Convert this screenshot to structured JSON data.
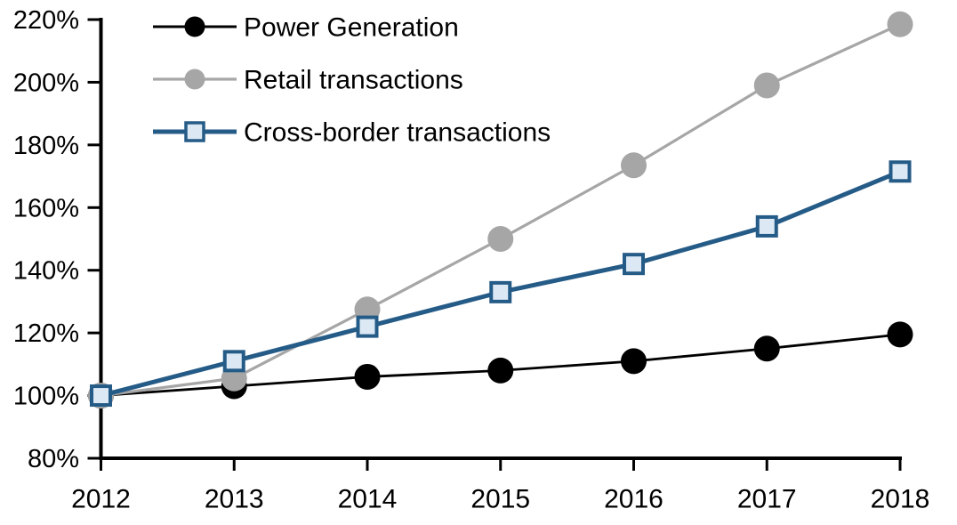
{
  "page": {
    "background": "#ffffff",
    "title": ""
  },
  "chart_data": {
    "type": "line",
    "title": "",
    "subtitle": "",
    "xlabel": "",
    "ylabel": "",
    "x": [
      "2012",
      "2013",
      "2014",
      "2015",
      "2016",
      "2017",
      "2018"
    ],
    "xtick_labels": [
      "2012",
      "2013",
      "2014",
      "2015",
      "2016",
      "2017",
      "2018"
    ],
    "ylim": [
      80,
      220
    ],
    "ytick_step": 20,
    "ytick_labels": [
      "80%",
      "100%",
      "120%",
      "140%",
      "160%",
      "180%",
      "200%",
      "220%"
    ],
    "ytick_values": [
      80,
      100,
      120,
      140,
      160,
      180,
      200,
      220
    ],
    "grid": false,
    "legend_position": "top-left-inside",
    "axis_color": "#000000",
    "tick_label_color": "#000000",
    "series": [
      {
        "name": "Power Generation",
        "color": "#000000",
        "marker": "circle",
        "marker_fill": "#000000",
        "line_width": 2.8,
        "values": [
          100,
          103,
          106,
          108,
          111,
          115,
          119.5
        ]
      },
      {
        "name": "Retail transactions",
        "color": "#a6a6a6",
        "marker": "circle",
        "marker_fill": "#a6a6a6",
        "line_width": 3.2,
        "values": [
          100,
          105.5,
          127.5,
          150,
          173.5,
          199,
          218.5
        ]
      },
      {
        "name": "Cross-border transactions",
        "color": "#255b87",
        "marker": "square",
        "marker_fill": "#dce9f5",
        "line_width": 5,
        "values": [
          100,
          111,
          122,
          133,
          142,
          154,
          171.5
        ]
      }
    ]
  }
}
